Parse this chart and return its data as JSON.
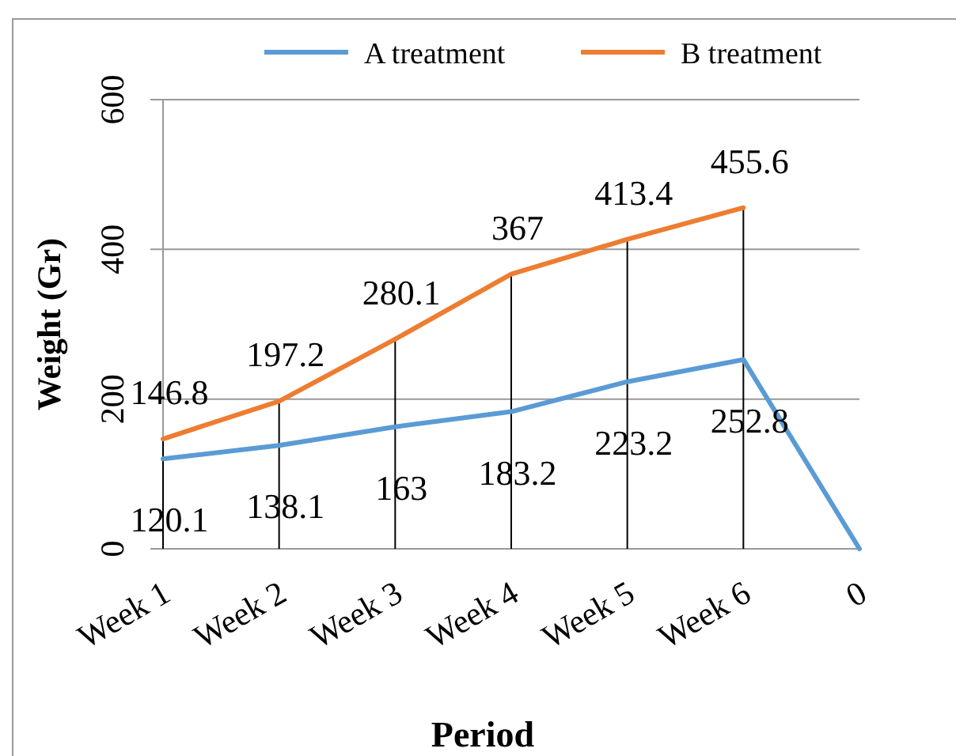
{
  "chart_data": {
    "type": "line",
    "xlabel": "Period",
    "ylabel": "Weight (Gr)",
    "categories": [
      "Week 1",
      "Week 2",
      "Week 3",
      "Week 4",
      "Week 5",
      "Week 6",
      "0"
    ],
    "series": [
      {
        "name": "A treatment",
        "color": "#5b9bd5",
        "values": [
          120.1,
          138.1,
          163,
          183.2,
          223.2,
          252.8,
          0
        ],
        "value_labels": [
          "120.1",
          "138.1",
          "163",
          "183.2",
          "223.2",
          "252.8",
          null
        ]
      },
      {
        "name": "B treatment",
        "color": "#ed7d31",
        "values": [
          146.8,
          197.2,
          280.1,
          367,
          413.4,
          455.6,
          null
        ],
        "value_labels": [
          "146.8",
          "197.2",
          "280.1",
          "367",
          "413.4",
          "455.6",
          null
        ]
      }
    ],
    "ylim": [
      0,
      600
    ],
    "yticks": [
      0,
      200,
      400,
      600
    ],
    "grid": "y",
    "legend": "top",
    "marker": "none",
    "line_style": "solid"
  }
}
